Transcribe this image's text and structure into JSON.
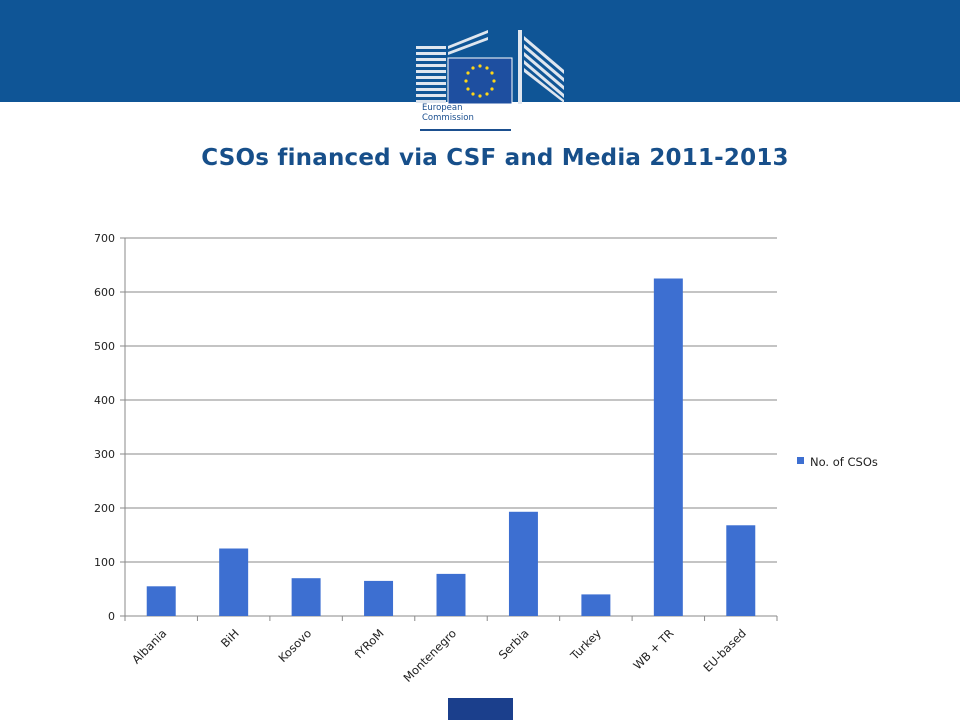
{
  "slide": {
    "title": "CSOs financed via CSF and Media 2011-2013"
  },
  "logo": {
    "line1": "European",
    "line2": "Commission"
  },
  "colors": {
    "header": "#0f5596",
    "bar": "#3d6fd1",
    "title": "#174f8a",
    "footer_block": "#1b3f8c"
  },
  "chart_data": {
    "type": "bar",
    "title": "",
    "categories": [
      "Albania",
      "BiH",
      "Kosovo",
      "fYRoM",
      "Montenegro",
      "Serbia",
      "Turkey",
      "WB + TR",
      "EU-based"
    ],
    "series": [
      {
        "name": "No. of CSOs",
        "values": [
          55,
          125,
          70,
          65,
          78,
          193,
          40,
          625,
          168
        ]
      }
    ],
    "ylim": [
      0,
      700
    ],
    "yticks": [
      0,
      100,
      200,
      300,
      400,
      500,
      600,
      700
    ],
    "grid": true,
    "legend": "right"
  }
}
